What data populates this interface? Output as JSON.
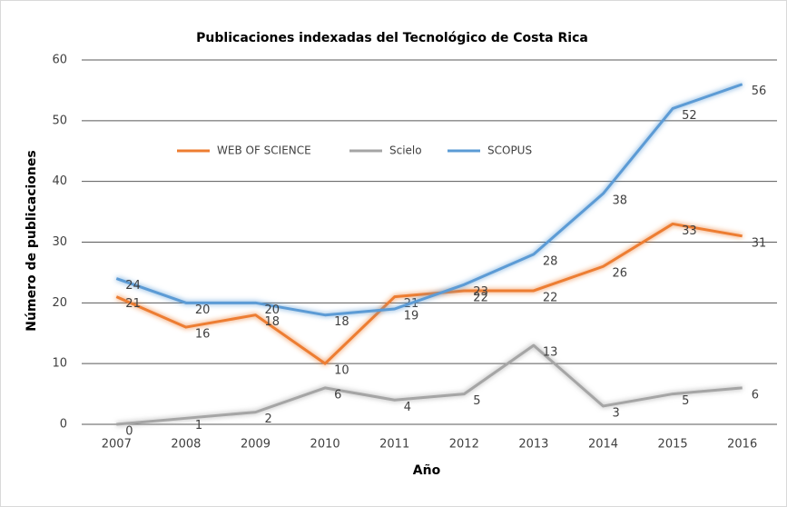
{
  "chart_data": {
    "type": "line",
    "title": "Publicaciones indexadas del Tecnológico de Costa Rica",
    "x_label": "Año",
    "y_label": "Número de publicaciones",
    "categories": [
      "2007",
      "2008",
      "2009",
      "2010",
      "2011",
      "2012",
      "2013",
      "2014",
      "2015",
      "2016"
    ],
    "series": [
      {
        "name": "WEB OF SCIENCE",
        "color": "#ed7d31",
        "values": [
          21,
          16,
          18,
          10,
          21,
          22,
          22,
          26,
          33,
          31
        ]
      },
      {
        "name": "Scielo",
        "color": "#a5a5a5",
        "values": [
          0,
          1,
          2,
          6,
          4,
          5,
          13,
          3,
          5,
          6
        ]
      },
      {
        "name": "SCOPUS",
        "color": "#5b9bd5",
        "values": [
          24,
          20,
          20,
          18,
          19,
          23,
          28,
          38,
          52,
          56
        ]
      }
    ],
    "ylim": [
      0,
      60
    ],
    "yticks": [
      0,
      10,
      20,
      30,
      40,
      50,
      60
    ],
    "grid": true,
    "legend": "top"
  }
}
